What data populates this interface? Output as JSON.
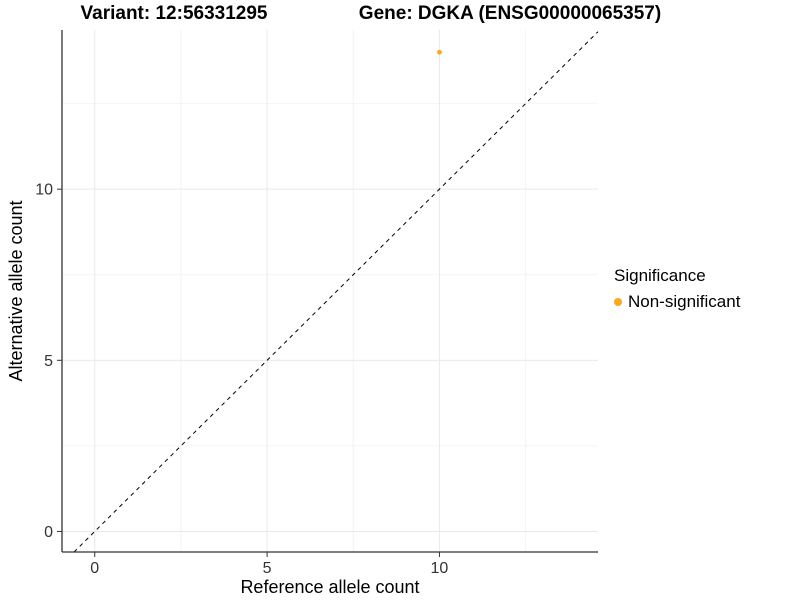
{
  "chart_data": {
    "type": "scatter",
    "title_left": "Variant: 12:56331295",
    "title_right": "Gene: DGKA (ENSG00000065357)",
    "xlabel": "Reference allele count",
    "ylabel": "Alternative allele count",
    "xlim": [
      -0.95,
      14.6
    ],
    "ylim": [
      -0.6,
      14.65
    ],
    "x_ticks": [
      0,
      5,
      10
    ],
    "y_ticks": [
      0,
      5,
      10
    ],
    "x_minor_ticks": [
      2.5,
      7.5,
      12.5
    ],
    "y_minor_ticks": [
      2.5,
      7.5,
      12.5
    ],
    "grid": "major+minor",
    "reference_line": {
      "slope": 1,
      "intercept": 0,
      "style": "dashed",
      "color": "#000000"
    },
    "series": [
      {
        "name": "Non-significant",
        "color": "#FFA51E",
        "points": [
          {
            "x": 10,
            "y": 14
          }
        ]
      }
    ],
    "legend": {
      "title": "Significance",
      "position": "right",
      "entries": [
        {
          "label": "Non-significant",
          "color": "#FFA51E"
        }
      ]
    },
    "colors": {
      "grid_major": "#E9E9E9",
      "grid_minor": "#F4F4F4",
      "axis_line": "#333333",
      "tick_label": "#333333",
      "background": "#FFFFFF"
    }
  }
}
